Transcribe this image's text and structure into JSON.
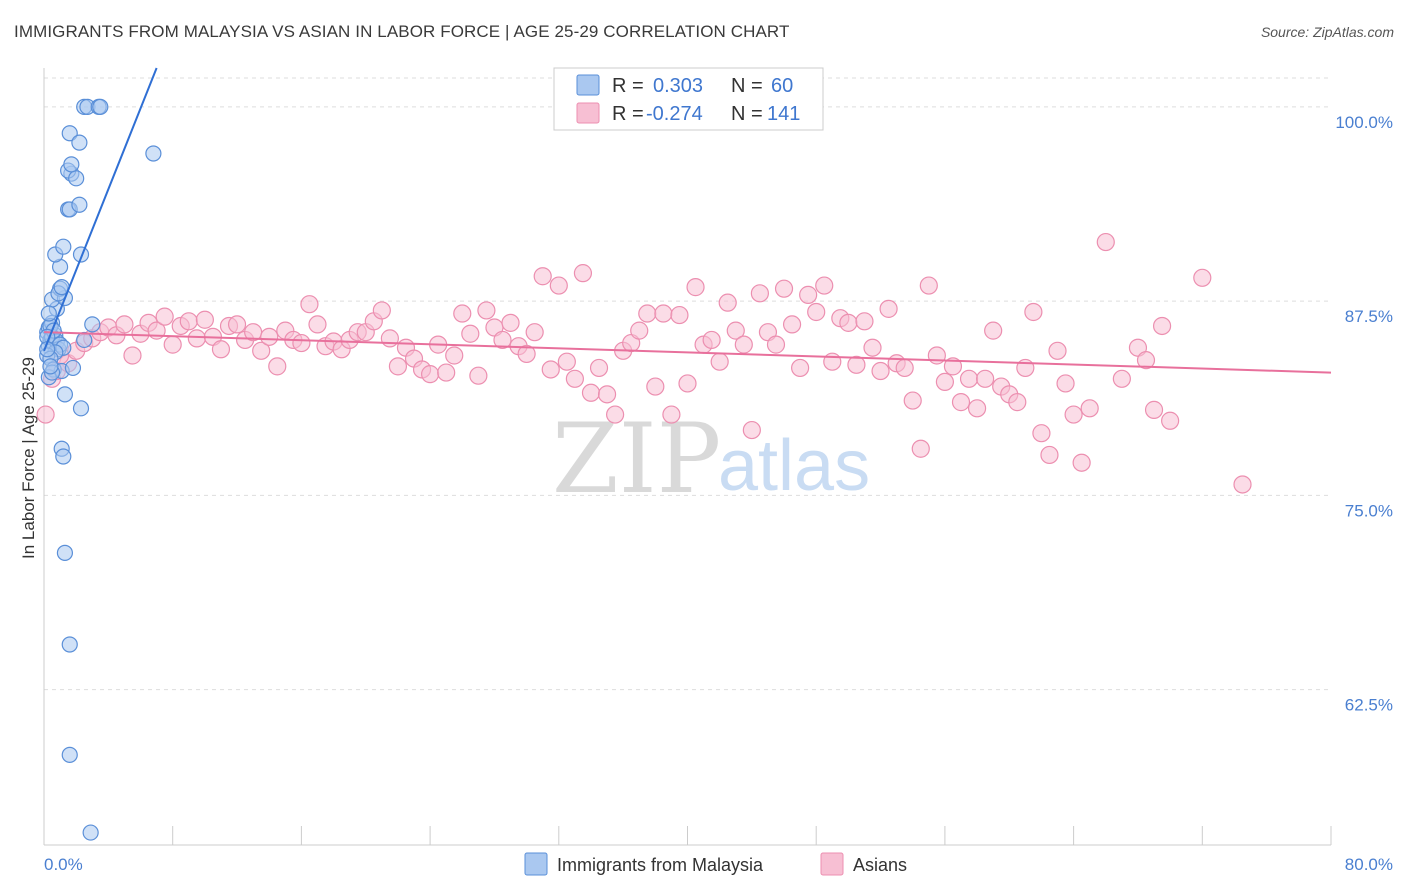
{
  "title": "IMMIGRANTS FROM MALAYSIA VS ASIAN IN LABOR FORCE | AGE 25-29 CORRELATION CHART",
  "source": "Source: ZipAtlas.com",
  "watermark": {
    "zip": "ZIP",
    "atlas": "atlas"
  },
  "colors": {
    "blue_fill": "#aac8f0",
    "blue_stroke": "#5a8fd8",
    "blue_line": "#2f6fd4",
    "pink_fill": "#f7bfd3",
    "pink_stroke": "#ec8fb0",
    "pink_line": "#e8709c",
    "accent_text": "#3f77cf",
    "grid": "#dddddd"
  },
  "legend_box": {
    "rows": [
      {
        "r_label": "R =",
        "r_value": "0.303",
        "n_label": "N =",
        "n_value": "60"
      },
      {
        "r_label": "R =",
        "r_value": "-0.274",
        "n_label": "N =",
        "n_value": "141"
      }
    ]
  },
  "chart_data": {
    "type": "scatter",
    "title": "IMMIGRANTS FROM MALAYSIA VS ASIAN IN LABOR FORCE | AGE 25-29 CORRELATION CHART",
    "xlabel": "",
    "ylabel": "In Labor Force | Age 25-29",
    "xlim": [
      0,
      80
    ],
    "ylim": [
      52.5,
      102.5
    ],
    "x_tick_labels": {
      "left": "0.0%",
      "right": "80.0%"
    },
    "y_ticks": [
      {
        "value": 100,
        "label": "100.0%"
      },
      {
        "value": 87.5,
        "label": "87.5%"
      },
      {
        "value": 75,
        "label": "75.0%"
      },
      {
        "value": 62.5,
        "label": "62.5%"
      }
    ],
    "legend": [
      "Immigrants from Malaysia",
      "Asians"
    ],
    "series": [
      {
        "name": "Immigrants from Malaysia",
        "r": 0.303,
        "n": 60,
        "trend": {
          "x0": 0.0,
          "y0": 84.3,
          "x1": 7.0,
          "y1": 102.5
        },
        "points": [
          [
            0.2,
            85.5
          ],
          [
            0.3,
            85.8
          ],
          [
            0.4,
            85.0
          ],
          [
            0.5,
            86.1
          ],
          [
            0.6,
            84.8
          ],
          [
            0.7,
            85.3
          ],
          [
            0.3,
            84.6
          ],
          [
            0.5,
            85.2
          ],
          [
            0.8,
            84.9
          ],
          [
            0.4,
            85.9
          ],
          [
            0.6,
            85.6
          ],
          [
            0.9,
            84.4
          ],
          [
            1.0,
            84.7
          ],
          [
            1.2,
            84.5
          ],
          [
            0.7,
            84.2
          ],
          [
            0.2,
            84.0
          ],
          [
            0.4,
            83.8
          ],
          [
            0.6,
            83.1
          ],
          [
            1.1,
            83.0
          ],
          [
            0.3,
            82.6
          ],
          [
            0.5,
            82.9
          ],
          [
            0.8,
            87.0
          ],
          [
            0.5,
            87.6
          ],
          [
            1.3,
            87.7
          ],
          [
            1.0,
            88.3
          ],
          [
            0.9,
            88.0
          ],
          [
            1.1,
            88.4
          ],
          [
            1.0,
            89.7
          ],
          [
            0.7,
            90.5
          ],
          [
            1.2,
            91.0
          ],
          [
            1.5,
            93.4
          ],
          [
            1.6,
            93.4
          ],
          [
            2.2,
            93.7
          ],
          [
            1.7,
            95.7
          ],
          [
            1.5,
            95.9
          ],
          [
            2.0,
            95.4
          ],
          [
            1.7,
            96.3
          ],
          [
            1.6,
            98.3
          ],
          [
            2.2,
            97.7
          ],
          [
            2.5,
            100.0
          ],
          [
            2.7,
            100.0
          ],
          [
            3.4,
            100.0
          ],
          [
            3.5,
            100.0
          ],
          [
            6.8,
            97.0
          ],
          [
            2.3,
            90.5
          ],
          [
            3.0,
            86.0
          ],
          [
            2.5,
            85.0
          ],
          [
            1.8,
            83.2
          ],
          [
            1.3,
            81.5
          ],
          [
            2.3,
            80.6
          ],
          [
            1.1,
            78.0
          ],
          [
            1.2,
            77.5
          ],
          [
            1.3,
            71.3
          ],
          [
            1.6,
            65.4
          ],
          [
            1.6,
            58.3
          ],
          [
            2.9,
            53.3
          ],
          [
            0.2,
            85.2
          ],
          [
            0.4,
            83.3
          ],
          [
            0.2,
            84.4
          ],
          [
            0.3,
            86.7
          ]
        ]
      },
      {
        "name": "Asians",
        "r": -0.274,
        "n": 141,
        "trend": {
          "x0": 0.0,
          "y0": 85.5,
          "x1": 80.0,
          "y1": 82.9
        },
        "points": [
          [
            0.1,
            80.2
          ],
          [
            0.5,
            82.5
          ],
          [
            0.8,
            83.0
          ],
          [
            1.5,
            83.5
          ],
          [
            2.0,
            84.3
          ],
          [
            2.5,
            84.8
          ],
          [
            3.0,
            85.1
          ],
          [
            3.5,
            85.5
          ],
          [
            4.0,
            85.8
          ],
          [
            4.5,
            85.3
          ],
          [
            5.0,
            86.0
          ],
          [
            5.5,
            84.0
          ],
          [
            6.0,
            85.4
          ],
          [
            6.5,
            86.1
          ],
          [
            7.0,
            85.6
          ],
          [
            7.5,
            86.5
          ],
          [
            8.0,
            84.7
          ],
          [
            8.5,
            85.9
          ],
          [
            9.0,
            86.2
          ],
          [
            9.5,
            85.1
          ],
          [
            10.0,
            86.3
          ],
          [
            10.5,
            85.2
          ],
          [
            11.0,
            84.4
          ],
          [
            11.5,
            85.9
          ],
          [
            12.0,
            86.0
          ],
          [
            12.5,
            85.0
          ],
          [
            13.0,
            85.5
          ],
          [
            13.5,
            84.3
          ],
          [
            14.0,
            85.2
          ],
          [
            14.5,
            83.3
          ],
          [
            15.0,
            85.6
          ],
          [
            15.5,
            85.0
          ],
          [
            16.0,
            84.8
          ],
          [
            16.5,
            87.3
          ],
          [
            17.0,
            86.0
          ],
          [
            17.5,
            84.6
          ],
          [
            18.0,
            84.9
          ],
          [
            18.5,
            84.4
          ],
          [
            19.0,
            85.0
          ],
          [
            19.5,
            85.5
          ],
          [
            20.0,
            85.5
          ],
          [
            20.5,
            86.2
          ],
          [
            21.0,
            86.9
          ],
          [
            21.5,
            85.1
          ],
          [
            22.0,
            83.3
          ],
          [
            22.5,
            84.5
          ],
          [
            23.0,
            83.8
          ],
          [
            23.5,
            83.1
          ],
          [
            24.0,
            82.8
          ],
          [
            24.5,
            84.7
          ],
          [
            25.0,
            82.9
          ],
          [
            25.5,
            84.0
          ],
          [
            26.0,
            86.7
          ],
          [
            26.5,
            85.4
          ],
          [
            27.0,
            82.7
          ],
          [
            27.5,
            86.9
          ],
          [
            28.0,
            85.8
          ],
          [
            28.5,
            85.0
          ],
          [
            29.0,
            86.1
          ],
          [
            29.5,
            84.6
          ],
          [
            30.0,
            84.1
          ],
          [
            30.5,
            85.5
          ],
          [
            31.0,
            89.1
          ],
          [
            31.5,
            83.1
          ],
          [
            32.0,
            88.5
          ],
          [
            32.5,
            83.6
          ],
          [
            33.0,
            82.5
          ],
          [
            33.5,
            89.3
          ],
          [
            34.0,
            81.6
          ],
          [
            34.5,
            83.2
          ],
          [
            35.0,
            81.5
          ],
          [
            35.5,
            80.2
          ],
          [
            36.0,
            84.3
          ],
          [
            36.5,
            84.8
          ],
          [
            37.0,
            85.6
          ],
          [
            37.5,
            86.7
          ],
          [
            38.0,
            82.0
          ],
          [
            38.5,
            86.7
          ],
          [
            39.0,
            80.2
          ],
          [
            39.5,
            86.6
          ],
          [
            40.0,
            82.2
          ],
          [
            40.5,
            88.4
          ],
          [
            41.0,
            84.7
          ],
          [
            41.5,
            85.0
          ],
          [
            42.0,
            83.6
          ],
          [
            42.5,
            87.4
          ],
          [
            43.0,
            85.6
          ],
          [
            43.5,
            84.7
          ],
          [
            44.0,
            79.2
          ],
          [
            44.5,
            88.0
          ],
          [
            45.0,
            85.5
          ],
          [
            45.5,
            84.7
          ],
          [
            46.0,
            88.3
          ],
          [
            46.5,
            86.0
          ],
          [
            47.0,
            83.2
          ],
          [
            47.5,
            87.9
          ],
          [
            48.0,
            86.8
          ],
          [
            48.5,
            88.5
          ],
          [
            49.0,
            83.6
          ],
          [
            49.5,
            86.4
          ],
          [
            50.0,
            86.1
          ],
          [
            50.5,
            83.4
          ],
          [
            51.0,
            86.2
          ],
          [
            51.5,
            84.5
          ],
          [
            52.0,
            83.0
          ],
          [
            52.5,
            87.0
          ],
          [
            53.0,
            83.5
          ],
          [
            53.5,
            83.2
          ],
          [
            54.0,
            81.1
          ],
          [
            54.5,
            78.0
          ],
          [
            55.0,
            88.5
          ],
          [
            55.5,
            84.0
          ],
          [
            56.0,
            82.3
          ],
          [
            56.5,
            83.3
          ],
          [
            57.0,
            81.0
          ],
          [
            57.5,
            82.5
          ],
          [
            58.0,
            80.6
          ],
          [
            58.5,
            82.5
          ],
          [
            59.0,
            85.6
          ],
          [
            59.5,
            82.0
          ],
          [
            60.0,
            81.5
          ],
          [
            60.5,
            81.0
          ],
          [
            61.0,
            83.2
          ],
          [
            61.5,
            86.8
          ],
          [
            62.0,
            79.0
          ],
          [
            62.5,
            77.6
          ],
          [
            63.0,
            84.3
          ],
          [
            63.5,
            82.2
          ],
          [
            64.0,
            80.2
          ],
          [
            64.5,
            77.1
          ],
          [
            65.0,
            80.6
          ],
          [
            66.0,
            91.3
          ],
          [
            67.0,
            82.5
          ],
          [
            68.0,
            84.5
          ],
          [
            68.5,
            83.7
          ],
          [
            69.0,
            80.5
          ],
          [
            69.5,
            85.9
          ],
          [
            70.0,
            79.8
          ],
          [
            72.0,
            89.0
          ],
          [
            74.5,
            75.7
          ],
          [
            1.0,
            84.0
          ]
        ]
      }
    ]
  }
}
